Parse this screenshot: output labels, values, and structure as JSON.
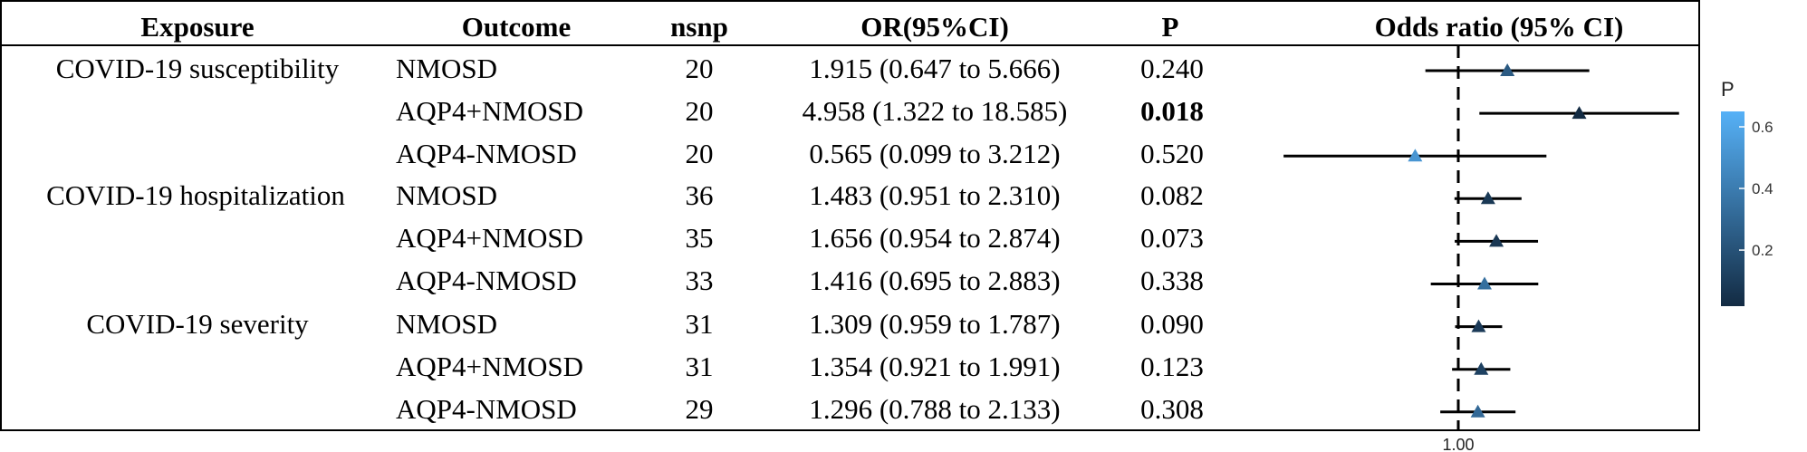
{
  "chart_data": {
    "type": "forest",
    "headers": {
      "exposure": "Exposure",
      "outcome": "Outcome",
      "nsnp": "nsnp",
      "or_ci": "OR(95%CI)",
      "p": "P",
      "plot": "Odds ratio (95% CI)"
    },
    "rows": [
      {
        "exposure": "COVID-19 susceptibility",
        "outcome": "NMOSD",
        "nsnp": "20",
        "or_ci": "1.915 (0.647 to 5.666)",
        "p": "0.240",
        "or": 1.915,
        "lo": 0.647,
        "hi": 5.666,
        "pval": 0.24,
        "significant": false
      },
      {
        "exposure": "",
        "outcome": "AQP4+NMOSD",
        "nsnp": "20",
        "or_ci": "4.958 (1.322 to 18.585)",
        "p": "0.018",
        "or": 4.958,
        "lo": 1.322,
        "hi": 18.585,
        "pval": 0.018,
        "significant": true
      },
      {
        "exposure": "",
        "outcome": "AQP4-NMOSD",
        "nsnp": "20",
        "or_ci": "0.565 (0.099 to 3.212)",
        "p": "0.520",
        "or": 0.565,
        "lo": 0.099,
        "hi": 3.212,
        "pval": 0.52,
        "significant": false
      },
      {
        "exposure": "COVID-19 hospitalization",
        "outcome": "NMOSD",
        "nsnp": "36",
        "or_ci": "1.483 (0.951 to 2.310)",
        "p": "0.082",
        "or": 1.483,
        "lo": 0.951,
        "hi": 2.31,
        "pval": 0.082,
        "significant": false
      },
      {
        "exposure": "",
        "outcome": "AQP4+NMOSD",
        "nsnp": "35",
        "or_ci": "1.656 (0.954 to 2.874)",
        "p": "0.073",
        "or": 1.656,
        "lo": 0.954,
        "hi": 2.874,
        "pval": 0.073,
        "significant": false
      },
      {
        "exposure": "",
        "outcome": "AQP4-NMOSD",
        "nsnp": "33",
        "or_ci": "1.416 (0.695 to 2.883)",
        "p": "0.338",
        "or": 1.416,
        "lo": 0.695,
        "hi": 2.883,
        "pval": 0.338,
        "significant": false
      },
      {
        "exposure": "COVID-19 severity",
        "outcome": "NMOSD",
        "nsnp": "31",
        "or_ci": "1.309 (0.959 to 1.787)",
        "p": "0.090",
        "or": 1.309,
        "lo": 0.959,
        "hi": 1.787,
        "pval": 0.09,
        "significant": false
      },
      {
        "exposure": "",
        "outcome": "AQP4+NMOSD",
        "nsnp": "31",
        "or_ci": "1.354 (0.921 to 1.991)",
        "p": "0.123",
        "or": 1.354,
        "lo": 0.921,
        "hi": 1.991,
        "pval": 0.123,
        "significant": false
      },
      {
        "exposure": "",
        "outcome": "AQP4-NMOSD",
        "nsnp": "29",
        "or_ci": "1.296 (0.788 to 2.133)",
        "p": "0.308",
        "or": 1.296,
        "lo": 0.788,
        "hi": 2.133,
        "pval": 0.308,
        "significant": false
      }
    ],
    "x_axis": {
      "scale": "log",
      "reference_line": 1.0,
      "tick_label": "1.00"
    },
    "legend": {
      "title": "P",
      "placement": "right",
      "ticks": [
        "0.6",
        "0.4",
        "0.2"
      ],
      "tick_values": [
        0.6,
        0.4,
        0.2
      ],
      "range": [
        0.018,
        0.65
      ],
      "color_low": "#132b43",
      "color_high": "#56b1f7"
    }
  }
}
